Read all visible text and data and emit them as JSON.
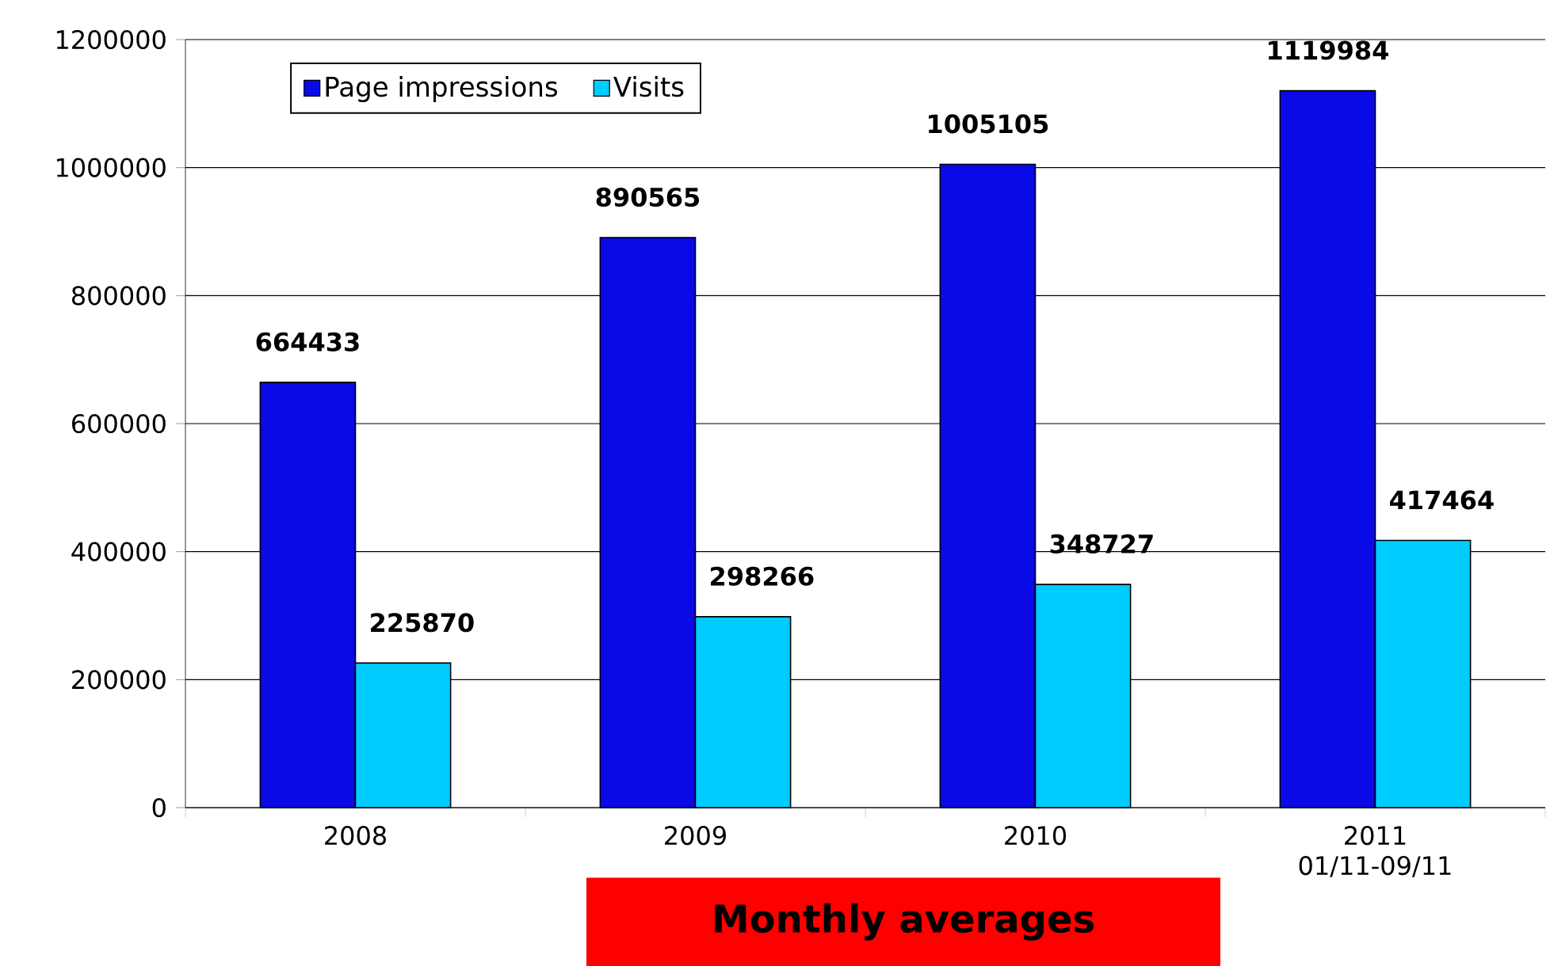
{
  "chart_data": {
    "type": "bar",
    "categories": [
      "2008",
      "2009",
      "2010",
      "2011 01/11-09/11"
    ],
    "series": [
      {
        "name": "Page impressions",
        "color": "#0a0ae6",
        "values": [
          664433,
          890565,
          1005105,
          1119984
        ]
      },
      {
        "name": "Visits",
        "color": "#00ccff",
        "values": [
          225870,
          298266,
          348727,
          417464
        ]
      }
    ],
    "ylim": [
      0,
      1200000
    ],
    "yticks": [
      0,
      200000,
      400000,
      600000,
      800000,
      1000000,
      1200000
    ],
    "grid": "y",
    "legend": "top left",
    "data_labels": true,
    "annotations": [
      "Monthly averages"
    ]
  }
}
